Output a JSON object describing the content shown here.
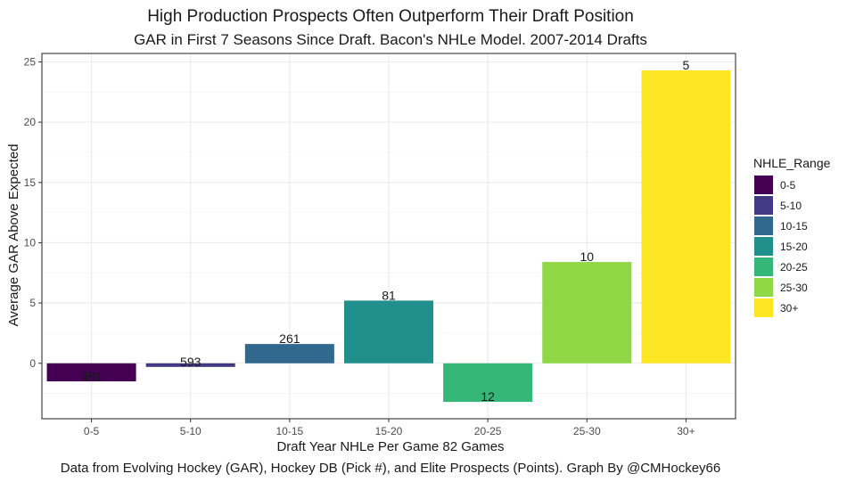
{
  "chart_data": {
    "type": "bar",
    "title": "High Production Prospects Often Outperform Their Draft Position",
    "subtitle": "GAR in First 7 Seasons Since Draft. Bacon's NHLe Model. 2007-2014 Drafts",
    "xlabel": "Draft Year NHLe Per Game 82 Games",
    "ylabel": "Average GAR Above Expected",
    "caption": "Data from Evolving Hockey (GAR), Hockey DB (Pick #), and Elite Prospects (Points). Graph By @CMHockey66",
    "categories": [
      "0-5",
      "5-10",
      "10-15",
      "15-20",
      "20-25",
      "25-30",
      "30+"
    ],
    "values": [
      -1.5,
      -0.3,
      1.6,
      5.2,
      -3.2,
      8.4,
      24.3
    ],
    "labels": [
      "481",
      "593",
      "261",
      "81",
      "12",
      "10",
      "5"
    ],
    "colors": [
      "#440154",
      "#443983",
      "#31688E",
      "#21908C",
      "#35B779",
      "#8FD744",
      "#FDE725"
    ],
    "ylim": [
      -4.6,
      25.7
    ],
    "yticks": [
      0,
      5,
      10,
      15,
      20,
      25
    ],
    "grid": true,
    "legend": {
      "title": "NHLE_Range",
      "position": "right",
      "entries": [
        "0-5",
        "5-10",
        "10-15",
        "15-20",
        "20-25",
        "25-30",
        "30+"
      ]
    }
  }
}
